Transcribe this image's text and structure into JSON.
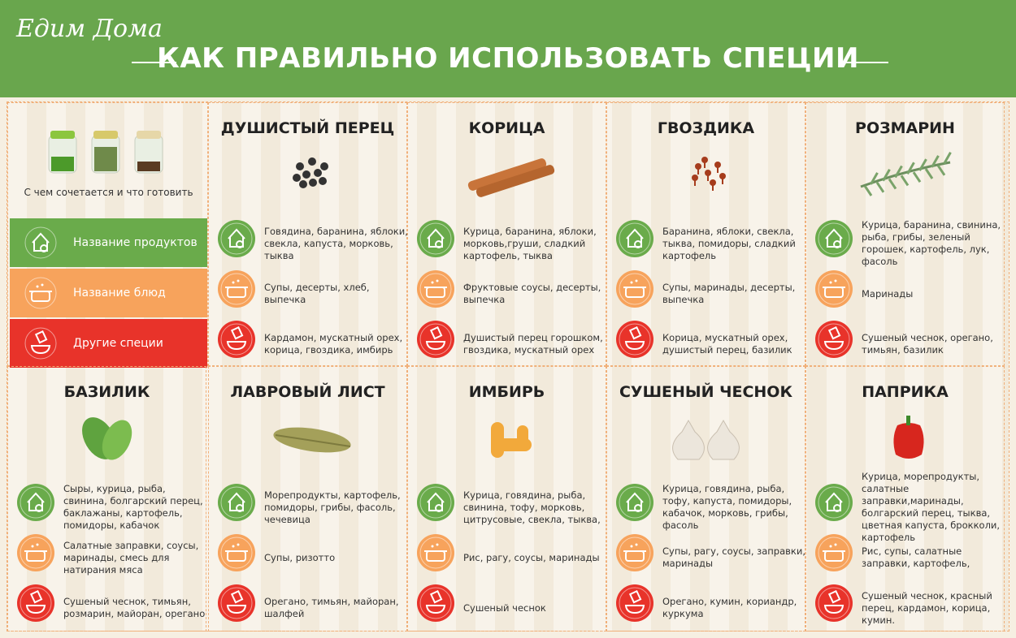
{
  "header": {
    "logo": "Едим Дома",
    "title": "КАК ПРАВИЛЬНО ИСПОЛЬЗОВАТЬ СПЕЦИИ"
  },
  "legend": {
    "caption": "С чем сочетается и что готовить",
    "items": [
      "Название продуктов",
      "Название блюд",
      "Другие специи"
    ]
  },
  "spices": [
    {
      "name": "ДУШИСТЫЙ ПЕРЕЦ",
      "products": "Говядина, баранина, яблоки, свекла, капуста, морковь, тыква",
      "dishes": "Супы, десерты, хлеб, выпечка",
      "other": "Кардамон, мускатный орех, корица, гвоздика, имбирь"
    },
    {
      "name": "КОРИЦА",
      "products": "Курица, баранина, яблоки, морковь,груши, сладкий картофель, тыква",
      "dishes": "Фруктовые соусы, десерты, выпечка",
      "other": "Душистый перец горошком, гвоздика, мускатный орех"
    },
    {
      "name": "ГВОЗДИКА",
      "products": "Баранина, яблоки, свекла, тыква, помидоры, сладкий картофель",
      "dishes": "Супы, маринады, десерты, выпечка",
      "other": "Корица, мускатный орех, душистый перец, базилик"
    },
    {
      "name": "РОЗМАРИН",
      "products": "Курица, баранина, свинина, рыба, грибы, зеленый горошек, картофель, лук, фасоль",
      "dishes": "Маринады",
      "other": "Сушеный чеснок, орегано, тимьян, базилик"
    },
    {
      "name": "БАЗИЛИК",
      "products": "Сыры, курица, рыба, свинина, болгарский перец, баклажаны, картофель, помидоры, кабачок",
      "dishes": "Салатные заправки, соусы, маринады, смесь для натирания мяса",
      "other": "Сушеный чеснок, тимьян, розмарин, майоран, орегано"
    },
    {
      "name": "ЛАВРОВЫЙ ЛИСТ",
      "products": "Морепродукты, картофель, помидоры, грибы, фасоль, чечевица",
      "dishes": "Супы, ризотто",
      "other": "Орегано, тимьян, майоран, шалфей"
    },
    {
      "name": "ИМБИРЬ",
      "products": "Курица, говядина, рыба, свинина, тофу, морковь, цитрусовые, свекла, тыква,",
      "dishes": "Рис, рагу, соусы, маринады",
      "other": "Сушеный чеснок"
    },
    {
      "name": "СУШЕНЫЙ ЧЕСНОК",
      "products": "Курица, говядина, рыба, тофу, капуста, помидоры, кабачок, морковь, грибы, фасоль",
      "dishes": "Супы, рагу, соусы, заправки, маринады",
      "other": "Орегано, кумин, кориандр, куркума"
    },
    {
      "name": "ПАПРИКА",
      "products": "Курица, морепродукты, салатные заправки,маринады, болгарский перец, тыква, цветная капуста, брокколи, картофель",
      "dishes": "Рис, супы, салатные заправки, картофель,",
      "other": "Сушеный чеснок, красный перец, кардамон, корица, кумин."
    }
  ]
}
